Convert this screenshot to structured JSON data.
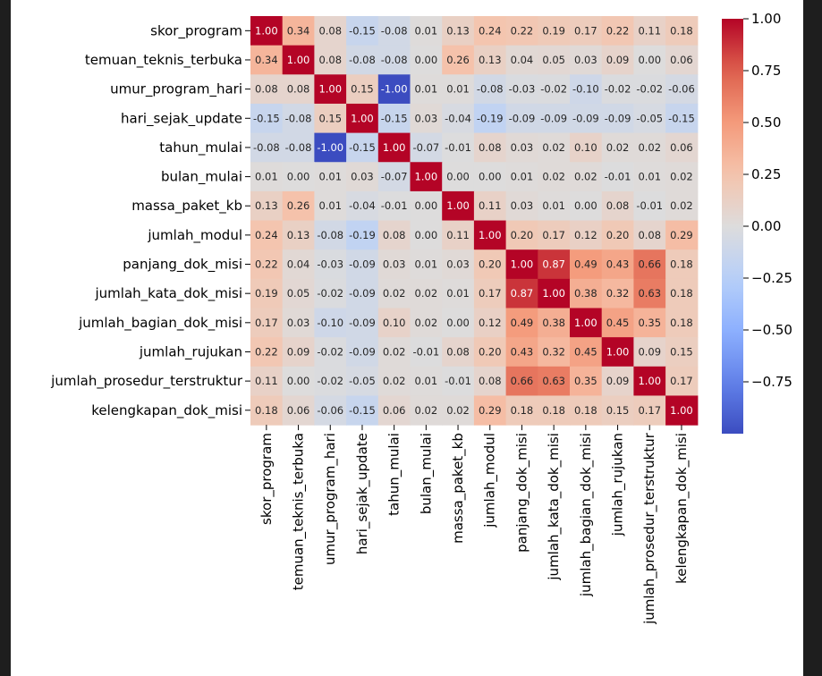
{
  "chart_data": {
    "type": "heatmap",
    "colormap": "coolwarm",
    "vmin": -1.0,
    "vmax": 1.0,
    "labels": [
      "skor_program",
      "temuan_teknis_terbuka",
      "umur_program_hari",
      "hari_sejak_update",
      "tahun_mulai",
      "bulan_mulai",
      "massa_paket_kb",
      "jumlah_modul",
      "panjang_dok_misi",
      "jumlah_kata_dok_misi",
      "jumlah_bagian_dok_misi",
      "jumlah_rujukan",
      "jumlah_prosedur_terstruktur",
      "kelengkapan_dok_misi"
    ],
    "matrix": [
      [
        1.0,
        0.34,
        0.08,
        -0.15,
        -0.08,
        0.01,
        0.13,
        0.24,
        0.22,
        0.19,
        0.17,
        0.22,
        0.11,
        0.18
      ],
      [
        0.34,
        1.0,
        0.08,
        -0.08,
        -0.08,
        -0.0,
        0.26,
        0.13,
        0.04,
        0.05,
        0.03,
        0.09,
        0.0,
        0.06
      ],
      [
        0.08,
        0.08,
        1.0,
        0.15,
        -1.0,
        0.01,
        0.01,
        -0.08,
        -0.03,
        -0.02,
        -0.1,
        -0.02,
        -0.02,
        -0.06
      ],
      [
        -0.15,
        -0.08,
        0.15,
        1.0,
        -0.15,
        0.03,
        -0.04,
        -0.19,
        -0.09,
        -0.09,
        -0.09,
        -0.09,
        -0.05,
        -0.15
      ],
      [
        -0.08,
        -0.08,
        -1.0,
        -0.15,
        1.0,
        -0.07,
        -0.01,
        0.08,
        0.03,
        0.02,
        0.1,
        0.02,
        0.02,
        0.06
      ],
      [
        0.01,
        -0.0,
        0.01,
        0.03,
        -0.07,
        1.0,
        0.0,
        0.0,
        0.01,
        0.02,
        0.02,
        -0.01,
        0.01,
        0.02
      ],
      [
        0.13,
        0.26,
        0.01,
        -0.04,
        -0.01,
        0.0,
        1.0,
        0.11,
        0.03,
        0.01,
        0.0,
        0.08,
        -0.01,
        0.02
      ],
      [
        0.24,
        0.13,
        -0.08,
        -0.19,
        0.08,
        0.0,
        0.11,
        1.0,
        0.2,
        0.17,
        0.12,
        0.2,
        0.08,
        0.29
      ],
      [
        0.22,
        0.04,
        -0.03,
        -0.09,
        0.03,
        0.01,
        0.03,
        0.2,
        1.0,
        0.87,
        0.49,
        0.43,
        0.66,
        0.18
      ],
      [
        0.19,
        0.05,
        -0.02,
        -0.09,
        0.02,
        0.02,
        0.01,
        0.17,
        0.87,
        1.0,
        0.38,
        0.32,
        0.63,
        0.18
      ],
      [
        0.17,
        0.03,
        -0.1,
        -0.09,
        0.1,
        0.02,
        0.0,
        0.12,
        0.49,
        0.38,
        1.0,
        0.45,
        0.35,
        0.18
      ],
      [
        0.22,
        0.09,
        -0.02,
        -0.09,
        0.02,
        -0.01,
        0.08,
        0.2,
        0.43,
        0.32,
        0.45,
        1.0,
        0.09,
        0.15
      ],
      [
        0.11,
        0.0,
        -0.02,
        -0.05,
        0.02,
        0.01,
        -0.01,
        0.08,
        0.66,
        0.63,
        0.35,
        0.09,
        1.0,
        0.17
      ],
      [
        0.18,
        0.06,
        -0.06,
        -0.15,
        0.06,
        0.02,
        0.02,
        0.29,
        0.18,
        0.18,
        0.18,
        0.15,
        0.17,
        1.0
      ]
    ],
    "value_format": "2 decimals",
    "colorbar_ticks": [
      "1.00",
      "0.75",
      "0.50",
      "0.25",
      "0.00",
      "−0.25",
      "−0.50",
      "−0.75"
    ],
    "colorbar_tick_values": [
      1.0,
      0.75,
      0.5,
      0.25,
      0.0,
      -0.25,
      -0.5,
      -0.75
    ]
  }
}
